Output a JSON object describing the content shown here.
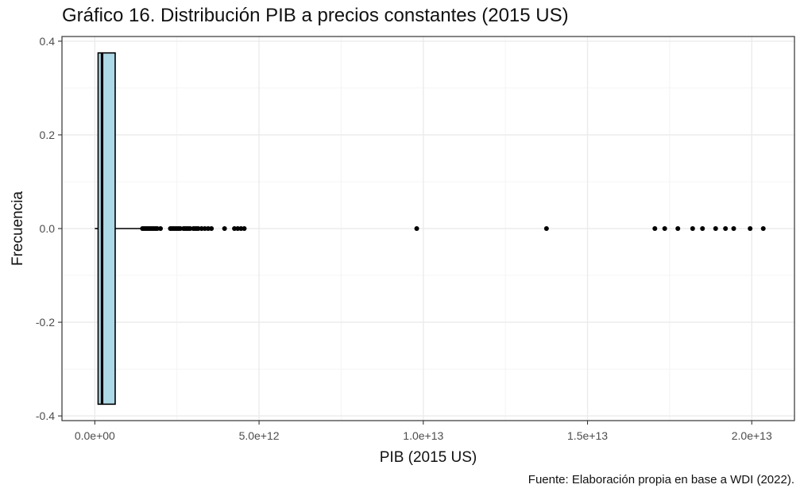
{
  "title": "Gráfico 16. Distribución PIB a precios constantes (2015 US)",
  "caption": "Fuente: Elaboración propia en base a WDI (2022).",
  "colors": {
    "box_fill": "#add8e6",
    "box_stroke": "#000000",
    "points": "#000000",
    "grid_major": "#ebebeb",
    "grid_minor": "#f4f4f4",
    "panel_border": "#333333"
  },
  "chart_data": {
    "type": "boxplot",
    "orientation": "horizontal",
    "xlabel": "PIB (2015 US)",
    "ylabel": "Frecuencia",
    "xlim": [
      -1000000000000.0,
      21300000000000.0
    ],
    "ylim": [
      -0.41,
      0.41
    ],
    "x_ticks": [
      {
        "value": 0,
        "label": "0.0e+00"
      },
      {
        "value": 5000000000000.0,
        "label": "5.0e+12"
      },
      {
        "value": 10000000000000.0,
        "label": "1.0e+13"
      },
      {
        "value": 15000000000000.0,
        "label": "1.5e+13"
      },
      {
        "value": 20000000000000.0,
        "label": "2.0e+13"
      }
    ],
    "y_ticks": [
      {
        "value": 0.4,
        "label": "0.4"
      },
      {
        "value": 0.2,
        "label": "0.2"
      },
      {
        "value": 0.0,
        "label": "0.0"
      },
      {
        "value": -0.2,
        "label": "-0.2"
      },
      {
        "value": -0.4,
        "label": "-0.4"
      }
    ],
    "grid": true,
    "box": {
      "y_center": 0.0,
      "y_half_width": 0.375,
      "q1": 100000000000.0,
      "median": 220000000000.0,
      "q3": 620000000000.0,
      "whisker_low": 0.0,
      "whisker_high": 1450000000000.0
    },
    "outliers": [
      1450000000000.0,
      1500000000000.0,
      1550000000000.0,
      1600000000000.0,
      1650000000000.0,
      1700000000000.0,
      1750000000000.0,
      1800000000000.0,
      1850000000000.0,
      1900000000000.0,
      2000000000000.0,
      2300000000000.0,
      2350000000000.0,
      2400000000000.0,
      2450000000000.0,
      2500000000000.0,
      2550000000000.0,
      2600000000000.0,
      2700000000000.0,
      2750000000000.0,
      2800000000000.0,
      2850000000000.0,
      2900000000000.0,
      3000000000000.0,
      3050000000000.0,
      3100000000000.0,
      3150000000000.0,
      3250000000000.0,
      3350000000000.0,
      3450000000000.0,
      3550000000000.0,
      3950000000000.0,
      4250000000000.0,
      4350000000000.0,
      4450000000000.0,
      4550000000000.0,
      9800000000000.0,
      13750000000000.0,
      17050000000000.0,
      17350000000000.0,
      17750000000000.0,
      18200000000000.0,
      18500000000000.0,
      18900000000000.0,
      19200000000000.0,
      19450000000000.0,
      19950000000000.0,
      20350000000000.0
    ]
  }
}
